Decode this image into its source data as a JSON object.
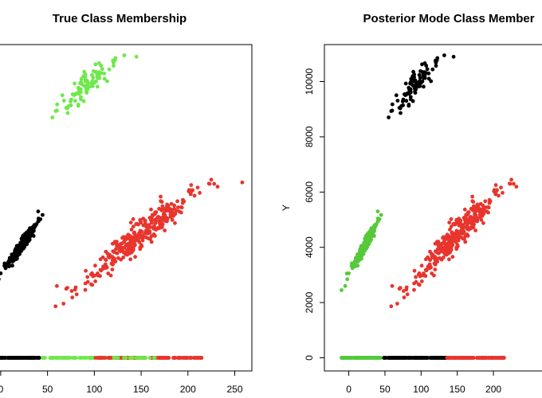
{
  "colors": {
    "black": "#000000",
    "red": "#e8352d",
    "green_true": "#6ee84a",
    "green_post": "#55c93a"
  },
  "chart_data": [
    {
      "type": "scatter",
      "title": "True Class Membership",
      "xlabel": "",
      "ylabel": "",
      "x_ticks": [
        0,
        50,
        100,
        150,
        200,
        250
      ],
      "y_ticks": [],
      "xlim": [
        -10,
        265
      ],
      "ylim": [
        -300,
        11200
      ],
      "series": [
        {
          "color_key": "green_true",
          "clusters": [
            {
              "center": [
                90,
                9750
              ],
              "slope": 27,
              "sd_x": 15,
              "sd_y": 260,
              "n": 85
            }
          ],
          "extra": [
            [
              60,
              8950
            ],
            [
              132,
              10950
            ],
            [
              145,
              10900
            ],
            [
              70,
              9050
            ]
          ]
        },
        {
          "color_key": "red",
          "clusters": [
            {
              "center": [
                145,
                4350
              ],
              "slope": 27,
              "sd_x": 30,
              "sd_y": 260,
              "n": 320
            }
          ],
          "extra": [
            [
              258,
              6350
            ],
            [
              228,
              6300
            ],
            [
              70,
              2500
            ],
            [
              80,
              2550
            ],
            [
              60,
              2600
            ]
          ]
        },
        {
          "color_key": "black",
          "clusters": [
            {
              "center": [
                22,
                4050
              ],
              "slope": 48,
              "sd_x": 8,
              "sd_y": 110,
              "n": 260
            }
          ],
          "extra": [
            [
              -10,
              2450
            ],
            [
              40,
              5300
            ],
            [
              -5,
              2600
            ]
          ]
        }
      ],
      "rug": [
        {
          "color_key": "black",
          "from": -8,
          "to": 42,
          "n": 120
        },
        {
          "color_key": "green_true",
          "from": 44,
          "to": 148,
          "n": 110
        },
        {
          "color_key": "red",
          "from": 100,
          "to": 215,
          "n": 130
        },
        {
          "color_key": "green_true",
          "from": 120,
          "to": 165,
          "n": 25
        }
      ]
    },
    {
      "type": "scatter",
      "title": "Posterior Mode Class Member",
      "xlabel": "",
      "ylabel": "Y",
      "x_ticks": [
        0,
        50,
        100,
        150,
        200
      ],
      "y_ticks": [
        0,
        2000,
        4000,
        6000,
        8000,
        10000
      ],
      "xlim": [
        -10,
        265
      ],
      "ylim": [
        -300,
        11200
      ],
      "series": [
        {
          "color_key": "black",
          "clusters": [
            {
              "center": [
                90,
                9750
              ],
              "slope": 27,
              "sd_x": 15,
              "sd_y": 260,
              "n": 85
            }
          ],
          "extra": [
            [
              60,
              8950
            ],
            [
              132,
              10950
            ],
            [
              145,
              10900
            ],
            [
              70,
              9050
            ]
          ]
        },
        {
          "color_key": "red",
          "clusters": [
            {
              "center": [
                145,
                4350
              ],
              "slope": 27,
              "sd_x": 30,
              "sd_y": 260,
              "n": 320
            }
          ],
          "extra": [
            [
              228,
              6300
            ],
            [
              70,
              2500
            ],
            [
              80,
              2550
            ],
            [
              60,
              2600
            ]
          ]
        },
        {
          "color_key": "green_post",
          "clusters": [
            {
              "center": [
                22,
                4050
              ],
              "slope": 48,
              "sd_x": 8,
              "sd_y": 110,
              "n": 260
            }
          ],
          "extra": [
            [
              -10,
              2450
            ],
            [
              40,
              5300
            ],
            [
              -5,
              2600
            ]
          ]
        }
      ],
      "rug": [
        {
          "color_key": "green_post",
          "from": -10,
          "to": 45,
          "n": 120
        },
        {
          "color_key": "black",
          "from": 48,
          "to": 135,
          "n": 140
        },
        {
          "color_key": "red",
          "from": 135,
          "to": 215,
          "n": 120
        }
      ]
    }
  ]
}
